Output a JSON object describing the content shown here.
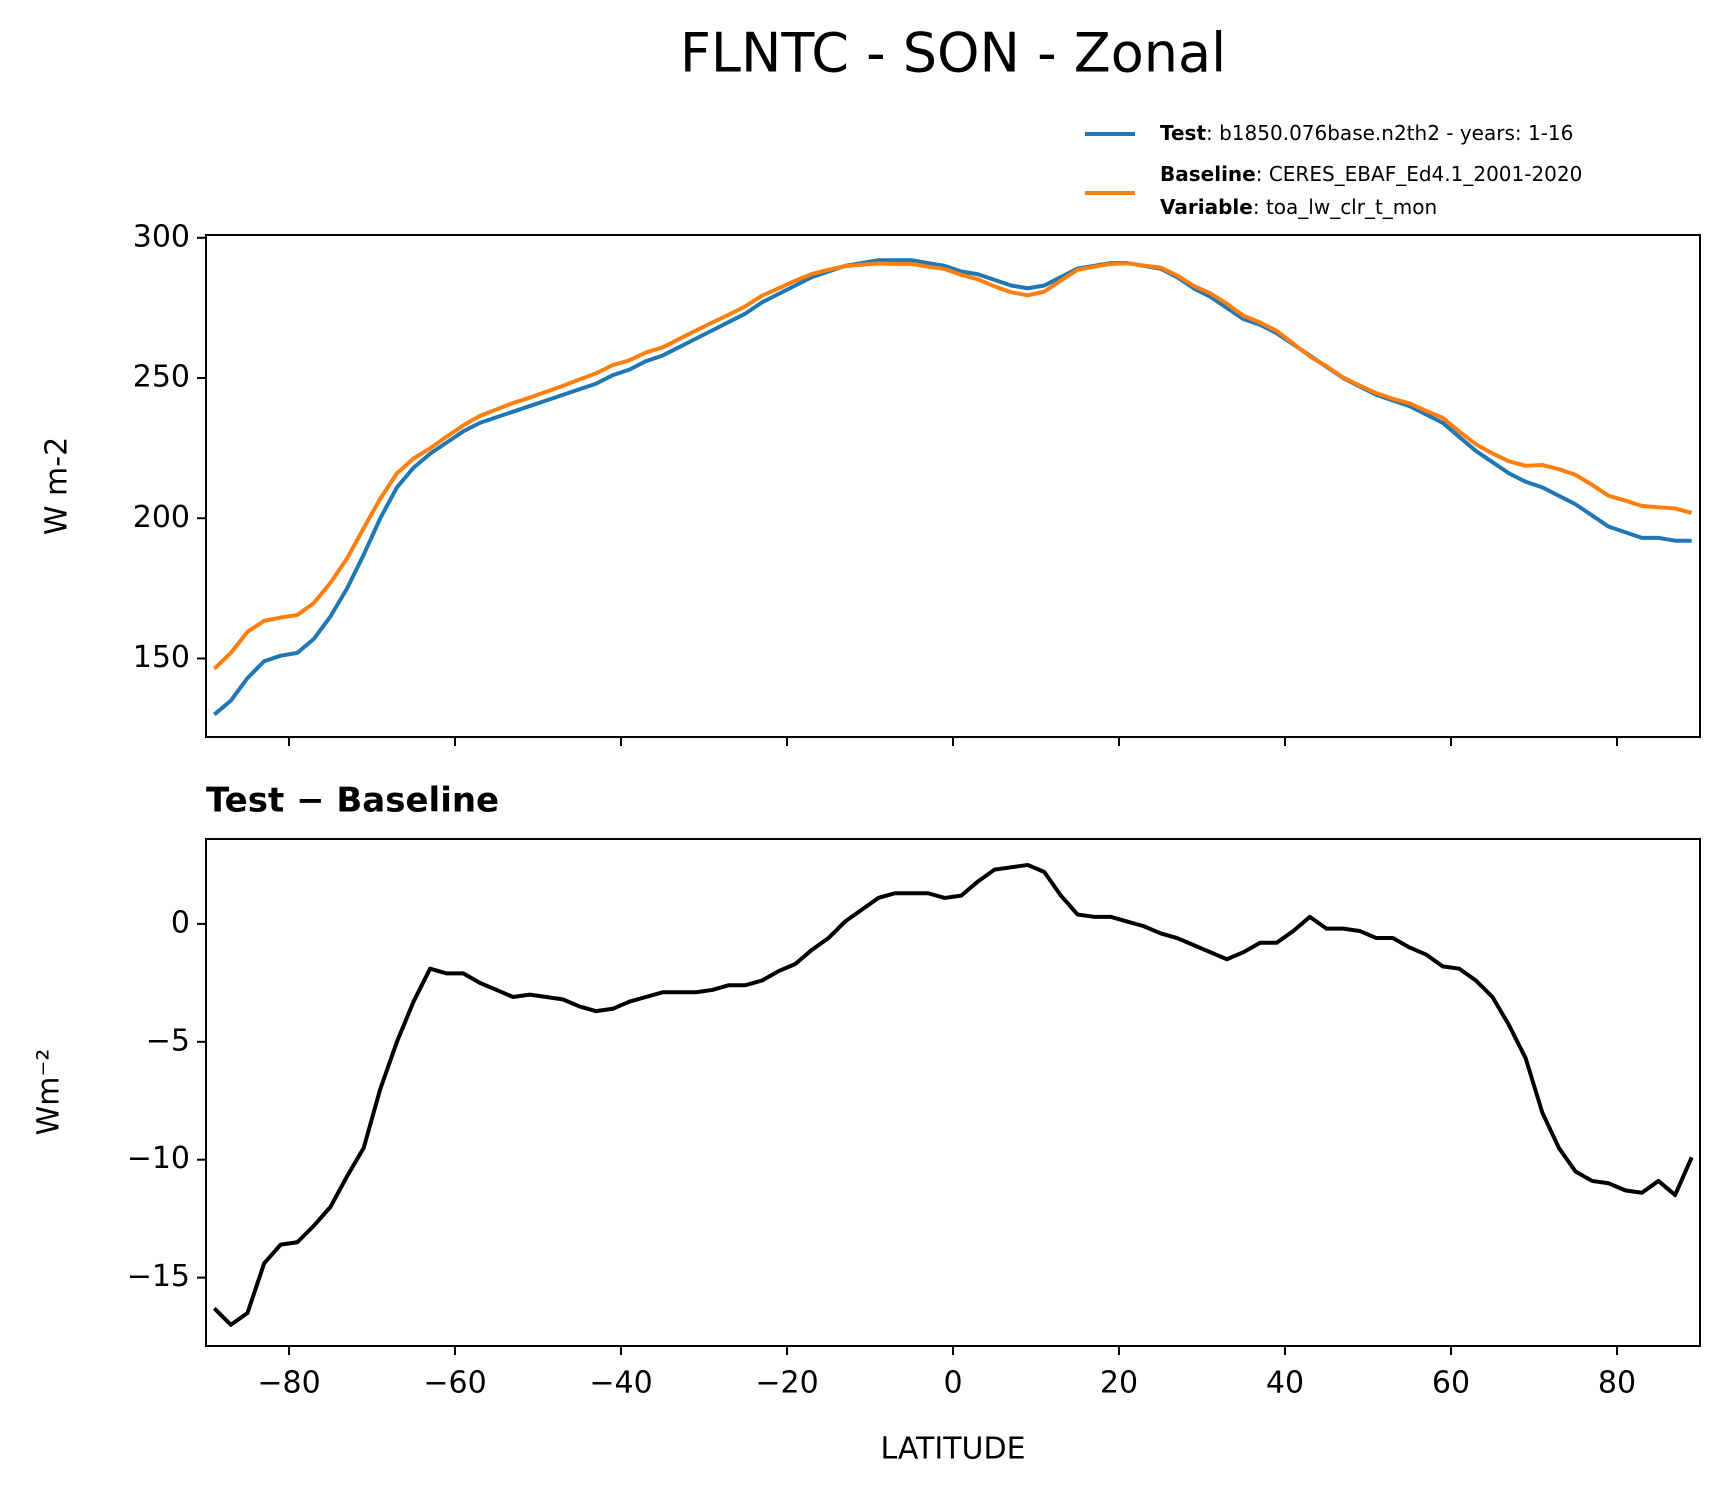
{
  "chart_data": [
    {
      "type": "line",
      "title": "FLNTC - SON - Zonal",
      "ylabel": "W m-2",
      "legend_extra": {
        "name": "Variable",
        "description": ": toa_lw_clr_t_mon"
      },
      "x": [
        -89,
        -87,
        -85,
        -83,
        -81,
        -79,
        -77,
        -75,
        -73,
        -71,
        -69,
        -67,
        -65,
        -63,
        -61,
        -59,
        -57,
        -55,
        -53,
        -51,
        -49,
        -47,
        -45,
        -43,
        -41,
        -39,
        -37,
        -35,
        -33,
        -31,
        -29,
        -27,
        -25,
        -23,
        -21,
        -19,
        -17,
        -15,
        -13,
        -11,
        -9,
        -7,
        -5,
        -3,
        -1,
        1,
        3,
        5,
        7,
        9,
        11,
        13,
        15,
        17,
        19,
        21,
        23,
        25,
        27,
        29,
        31,
        33,
        35,
        37,
        39,
        41,
        43,
        45,
        47,
        49,
        51,
        53,
        55,
        57,
        59,
        61,
        63,
        65,
        67,
        69,
        71,
        73,
        75,
        77,
        79,
        81,
        83,
        85,
        87,
        89
      ],
      "series": [
        {
          "name": "Test",
          "description": ": b1850.076base.n2th2 - years: 1-16",
          "color": "#1f77b4",
          "values": [
            130,
            135,
            143,
            149,
            151,
            152,
            157,
            165,
            175,
            187,
            200,
            211,
            218,
            223,
            227,
            231,
            234,
            236,
            238,
            240,
            242,
            244,
            246,
            248,
            251,
            253,
            256,
            258,
            261,
            264,
            267,
            270,
            273,
            277,
            280,
            283,
            286,
            288,
            290,
            291,
            292,
            292,
            292,
            291,
            290,
            288,
            287,
            285,
            283,
            282,
            283,
            286,
            289,
            290,
            291,
            291,
            290,
            289,
            286,
            282,
            279,
            275,
            271,
            269,
            266,
            262,
            258,
            254,
            250,
            247,
            244,
            242,
            240,
            237,
            234,
            229,
            224,
            220,
            216,
            213,
            211,
            208,
            205,
            201,
            197,
            195,
            193,
            193,
            192,
            192
          ]
        },
        {
          "name": "Baseline",
          "description": ": CERES_EBAF_Ed4.1_2001-2020",
          "color": "#ff7f0e",
          "values": [
            146.3,
            152,
            159.5,
            163.4,
            164.6,
            165.5,
            169.8,
            177,
            185.7,
            196.5,
            207,
            216,
            221.3,
            224.9,
            229.1,
            233.1,
            236.5,
            238.8,
            241.1,
            243,
            245.1,
            247.2,
            249.5,
            251.7,
            254.6,
            256.3,
            259.1,
            260.9,
            263.9,
            266.9,
            269.8,
            272.6,
            275.6,
            279.4,
            282,
            284.7,
            287.1,
            288.6,
            289.9,
            290.4,
            290.9,
            290.7,
            290.7,
            289.7,
            288.9,
            286.8,
            285.2,
            282.7,
            280.6,
            279.5,
            280.8,
            284.8,
            288.6,
            289.7,
            290.7,
            290.9,
            290.1,
            289.4,
            286.6,
            282.9,
            280.2,
            276.5,
            272.2,
            269.8,
            266.8,
            262.3,
            257.7,
            254.2,
            250.2,
            247.3,
            244.6,
            242.6,
            241,
            238.3,
            235.8,
            230.9,
            226.4,
            223.1,
            220.3,
            218.7,
            219,
            217.5,
            215.5,
            211.9,
            208,
            206.3,
            204.4,
            203.9,
            203.5,
            201.9
          ]
        }
      ],
      "xlim": [
        -90,
        90
      ],
      "xticks": [
        -80,
        -60,
        -40,
        -20,
        0,
        20,
        40,
        60,
        80
      ],
      "ylim": [
        122,
        301
      ],
      "yticks": [
        150,
        200,
        250,
        300
      ]
    },
    {
      "type": "line",
      "title": "Test − Baseline",
      "ylabel": "Wm⁻²",
      "xlabel": "LATITUDE",
      "x": [
        -89,
        -87,
        -85,
        -83,
        -81,
        -79,
        -77,
        -75,
        -73,
        -71,
        -69,
        -67,
        -65,
        -63,
        -61,
        -59,
        -57,
        -55,
        -53,
        -51,
        -49,
        -47,
        -45,
        -43,
        -41,
        -39,
        -37,
        -35,
        -33,
        -31,
        -29,
        -27,
        -25,
        -23,
        -21,
        -19,
        -17,
        -15,
        -13,
        -11,
        -9,
        -7,
        -5,
        -3,
        -1,
        1,
        3,
        5,
        7,
        9,
        11,
        13,
        15,
        17,
        19,
        21,
        23,
        25,
        27,
        29,
        31,
        33,
        35,
        37,
        39,
        41,
        43,
        45,
        47,
        49,
        51,
        53,
        55,
        57,
        59,
        61,
        63,
        65,
        67,
        69,
        71,
        73,
        75,
        77,
        79,
        81,
        83,
        85,
        87,
        89
      ],
      "series": [
        {
          "color": "#000000",
          "values": [
            -16.3,
            -17,
            -16.5,
            -14.4,
            -13.6,
            -13.5,
            -12.8,
            -12,
            -10.7,
            -9.5,
            -7,
            -5,
            -3.3,
            -1.9,
            -2.1,
            -2.1,
            -2.5,
            -2.8,
            -3.1,
            -3,
            -3.1,
            -3.2,
            -3.5,
            -3.7,
            -3.6,
            -3.3,
            -3.1,
            -2.9,
            -2.9,
            -2.9,
            -2.8,
            -2.6,
            -2.6,
            -2.4,
            -2,
            -1.7,
            -1.1,
            -0.6,
            0.1,
            0.6,
            1.1,
            1.3,
            1.3,
            1.3,
            1.1,
            1.2,
            1.8,
            2.3,
            2.4,
            2.5,
            2.2,
            1.2,
            0.4,
            0.3,
            0.3,
            0.1,
            -0.1,
            -0.4,
            -0.6,
            -0.9,
            -1.2,
            -1.5,
            -1.2,
            -0.8,
            -0.8,
            -0.3,
            0.3,
            -0.2,
            -0.2,
            -0.3,
            -0.6,
            -0.6,
            -1,
            -1.3,
            -1.8,
            -1.9,
            -2.4,
            -3.1,
            -4.3,
            -5.7,
            -8,
            -9.5,
            -10.5,
            -10.9,
            -11,
            -11.3,
            -11.4,
            -10.9,
            -11.5,
            -9.9
          ]
        }
      ],
      "xlim": [
        -90,
        90
      ],
      "xticks": [
        {
          "value": -80,
          "label": "−80"
        },
        {
          "value": -60,
          "label": "−60"
        },
        {
          "value": -40,
          "label": "−40"
        },
        {
          "value": -20,
          "label": "−20"
        },
        0,
        20,
        40,
        60,
        80
      ],
      "ylim": [
        -17.9,
        3.6
      ],
      "yticks": [
        {
          "value": -15,
          "label": "−15"
        },
        {
          "value": -10,
          "label": "−10"
        },
        {
          "value": -5,
          "label": "−5"
        },
        0
      ]
    }
  ]
}
